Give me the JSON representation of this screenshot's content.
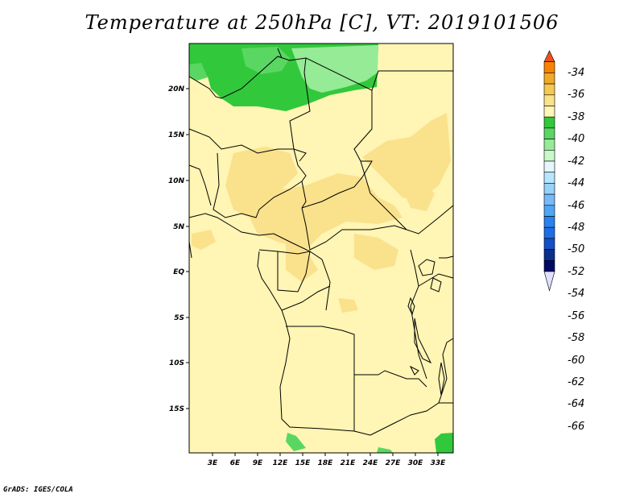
{
  "title": "Temperature at 250hPa [C], VT: 2019101506",
  "credit": "GrADS: IGES/COLA",
  "map": {
    "lon_labels": [
      "3E",
      "6E",
      "9E",
      "12E",
      "15E",
      "18E",
      "21E",
      "24E",
      "27E",
      "30E",
      "33E"
    ],
    "lat_labels": [
      "20N",
      "15N",
      "10N",
      "5N",
      "EQ",
      "5S",
      "10S",
      "15S"
    ]
  },
  "colorbar": {
    "labels": [
      "-34",
      "-36",
      "-38",
      "-40",
      "-42",
      "-44",
      "-46",
      "-48",
      "-50",
      "-52",
      "-54",
      "-56",
      "-58",
      "-60",
      "-62",
      "-64",
      "-66"
    ],
    "colors": [
      "#f0501e",
      "#fa8200",
      "#f0aa28",
      "#f5c850",
      "#fae18c",
      "#fff5b4",
      "#32c83c",
      "#5ad762",
      "#96eb96",
      "#c8fac8",
      "#e6f5ff",
      "#b4e6ff",
      "#96d2fa",
      "#78b9fa",
      "#50a5f5",
      "#2882f0",
      "#1e6ee6",
      "#1450c8",
      "#0a2f8c",
      "#000a64",
      "#e0e0ff"
    ]
  }
}
